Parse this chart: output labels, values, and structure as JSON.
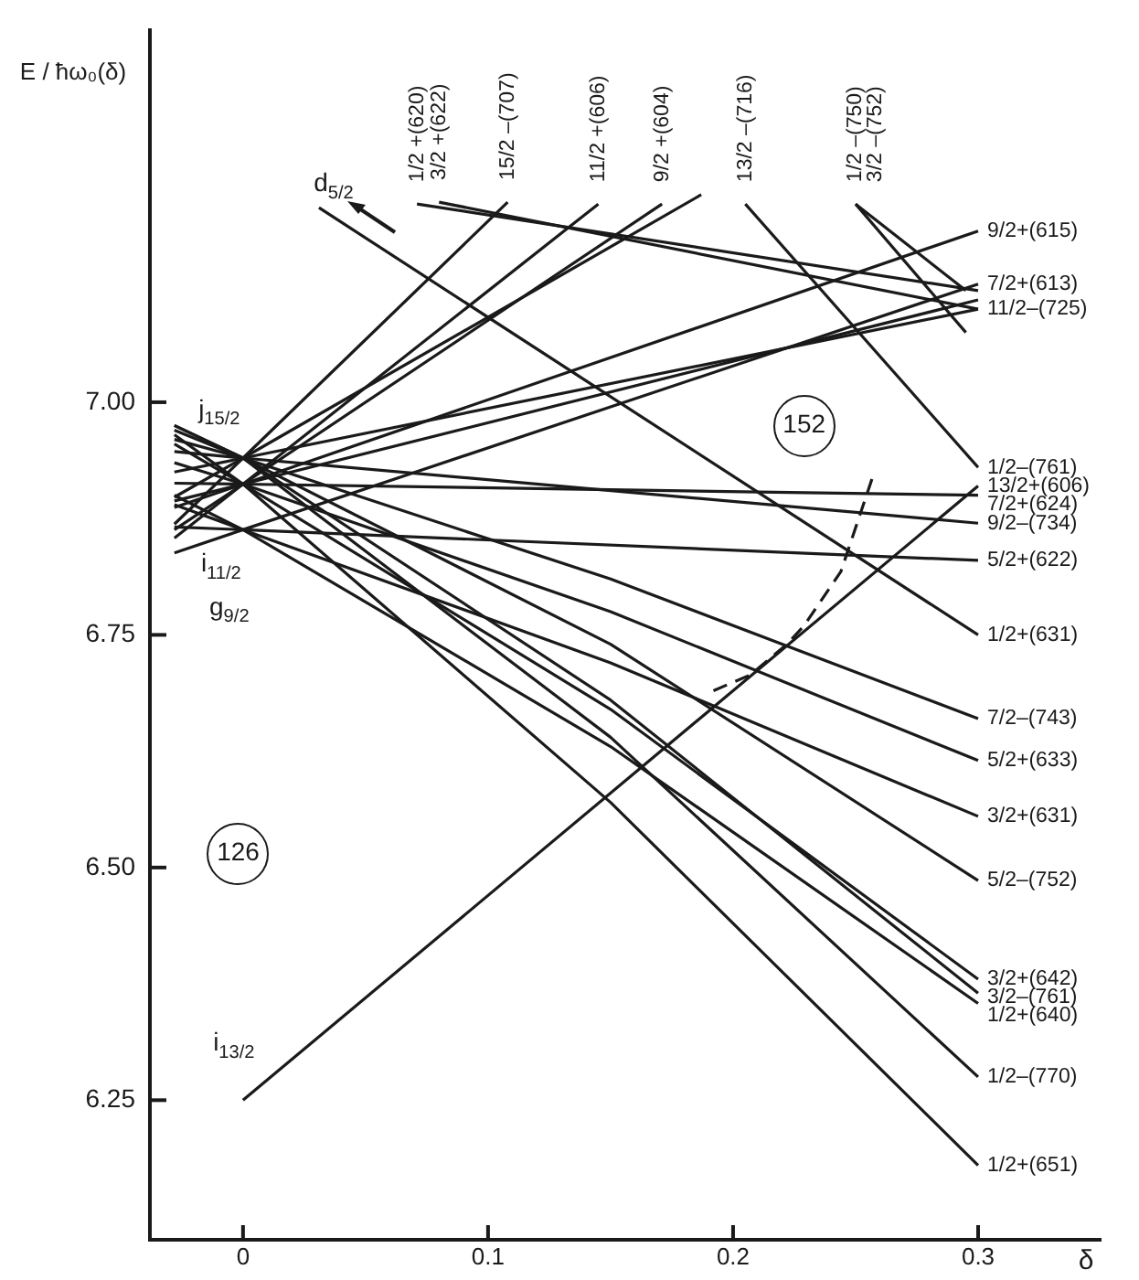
{
  "chart_data": {
    "type": "line",
    "xlabel": "δ",
    "ylabel": "E / ħω₀(δ)",
    "xlim": [
      -0.038,
      0.35
    ],
    "ylim": [
      6.1,
      7.4
    ],
    "xticks": [
      0,
      0.1,
      0.2,
      0.3
    ],
    "yticks": [
      6.25,
      {
        "value": 6.5,
        "label": "6.50"
      },
      6.75,
      {
        "value": 7,
        "label": "7.00"
      }
    ],
    "grid": false,
    "legend": false,
    "marker": "none",
    "series": [
      {
        "color": "#1a1a1a",
        "x": [
          -0.028,
          0,
          0.108
        ],
        "values": [
          6.869,
          6.94,
          7.215
        ]
      },
      {
        "color": "#1a1a1a",
        "x": [
          -0.028,
          0,
          0.187
        ],
        "values": [
          6.898,
          6.94,
          7.223
        ]
      },
      {
        "color": "#1a1a1a",
        "x": [
          -0.028,
          0,
          0.145
        ],
        "values": [
          6.854,
          6.912,
          7.213
        ]
      },
      {
        "color": "#1a1a1a",
        "x": [
          -0.028,
          0,
          0.171
        ],
        "values": [
          6.863,
          6.912,
          7.213
        ]
      },
      {
        "color": "#1a1a1a",
        "x": [
          -0.028,
          0,
          0.3
        ],
        "values": [
          6.887,
          6.912,
          7.184
        ]
      },
      {
        "color": "#1a1a1a",
        "x": [
          -0.028,
          0,
          0.3
        ],
        "values": [
          6.838,
          6.863,
          7.127
        ]
      },
      {
        "color": "#1a1a1a",
        "x": [
          -0.028,
          0,
          0.3
        ],
        "values": [
          6.925,
          6.94,
          7.1
        ]
      },
      {
        "color": "#1a1a1a",
        "x": [
          -0.028,
          0,
          0.3
        ],
        "values": [
          6.894,
          6.912,
          7.11
        ]
      },
      {
        "color": "#1a1a1a",
        "x": [
          -0.028,
          0,
          0.3
        ],
        "values": [
          6.913,
          6.912,
          6.9
        ]
      },
      {
        "color": "#1a1a1a",
        "x": [
          0,
          0.3
        ],
        "values": [
          6.25,
          6.91
        ]
      },
      {
        "color": "#1a1a1a",
        "x": [
          -0.028,
          0,
          0.3
        ],
        "values": [
          6.947,
          6.94,
          6.87
        ]
      },
      {
        "color": "#1a1a1a",
        "x": [
          -0.028,
          0,
          0.3
        ],
        "values": [
          6.866,
          6.863,
          6.83
        ]
      },
      {
        "color": "#1a1a1a",
        "x": [
          -0.028,
          0,
          0.15,
          0.3
        ],
        "values": [
          6.96,
          6.94,
          6.81,
          6.66
        ]
      },
      {
        "color": "#1a1a1a",
        "x": [
          -0.028,
          0,
          0.15,
          0.3
        ],
        "values": [
          6.935,
          6.912,
          6.775,
          6.615
        ]
      },
      {
        "color": "#1a1a1a",
        "x": [
          -0.028,
          0,
          0.15,
          0.3
        ],
        "values": [
          6.89,
          6.863,
          6.72,
          6.555
        ]
      },
      {
        "color": "#1a1a1a",
        "x": [
          -0.028,
          0,
          0.15,
          0.3
        ],
        "values": [
          6.975,
          6.94,
          6.74,
          6.486
        ]
      },
      {
        "color": "#1a1a1a",
        "x": [
          -0.028,
          0,
          0.15,
          0.3
        ],
        "values": [
          6.955,
          6.912,
          6.67,
          6.38
        ]
      },
      {
        "color": "#1a1a1a",
        "x": [
          -0.028,
          0,
          0.15,
          0.3
        ],
        "values": [
          6.97,
          6.94,
          6.68,
          6.365
        ]
      },
      {
        "color": "#1a1a1a",
        "x": [
          -0.028,
          0,
          0.15,
          0.3
        ],
        "values": [
          6.9,
          6.863,
          6.63,
          6.354
        ]
      },
      {
        "color": "#1a1a1a",
        "x": [
          -0.028,
          0,
          0.15,
          0.3
        ],
        "values": [
          6.975,
          6.94,
          6.64,
          6.275
        ]
      },
      {
        "color": "#1a1a1a",
        "x": [
          -0.028,
          0,
          0.15,
          0.3
        ],
        "values": [
          6.965,
          6.912,
          6.57,
          6.18
        ]
      },
      {
        "color": "#1a1a1a",
        "x": [
          0.031,
          0.3
        ],
        "values": [
          7.209,
          6.75
        ]
      },
      {
        "color": "#1a1a1a",
        "x": [
          0.071,
          0.3
        ],
        "values": [
          7.213,
          7.12
        ]
      },
      {
        "color": "#1a1a1a",
        "x": [
          0.08,
          0.3
        ],
        "values": [
          7.215,
          7.1
        ]
      },
      {
        "color": "#1a1a1a",
        "x": [
          0.205,
          0.3
        ],
        "values": [
          7.213,
          6.93
        ]
      },
      {
        "color": "#1a1a1a",
        "x": [
          0.25,
          0.295
        ],
        "values": [
          7.213,
          7.12
        ]
      },
      {
        "color": "#1a1a1a",
        "x": [
          0.25,
          0.295
        ],
        "values": [
          7.213,
          7.075
        ]
      },
      {
        "color": "#1a1a1a",
        "line_style": "dashed",
        "x": [
          0.192,
          0.207,
          0.222,
          0.229,
          0.244,
          0.257
        ],
        "values": [
          6.69,
          6.707,
          6.74,
          6.76,
          6.818,
          6.92
        ]
      }
    ],
    "annotations": [
      {
        "text": "1/2 +(620)",
        "x": 0.071,
        "y": 7.213
      },
      {
        "text": "3/2 +(622)",
        "x": 0.08,
        "y": 7.215
      },
      {
        "text": "15/2 –(707)",
        "x": 0.108,
        "y": 7.215
      },
      {
        "text": "11/2 +(606)",
        "x": 0.145,
        "y": 7.213
      },
      {
        "text": "9/2 +(604)",
        "x": 0.171,
        "y": 7.213
      },
      {
        "text": "13/2 –(716)",
        "x": 0.205,
        "y": 7.213
      },
      {
        "text": "1/2 –(750)",
        "x": 0.25,
        "y": 7.213
      },
      {
        "text": "3/2 –(752)",
        "x": 0.25,
        "y": 7.213
      },
      {
        "text": "9/2+(615)",
        "x": 0.3,
        "y": 7.184
      },
      {
        "text": "7/2+(613)",
        "x": 0.3,
        "y": 7.127
      },
      {
        "text": "11/2–(725)",
        "x": 0.3,
        "y": 7.1
      },
      {
        "text": "1/2–(761)",
        "x": 0.3,
        "y": 6.93
      },
      {
        "text": "13/2+(606)",
        "x": 0.3,
        "y": 6.91
      },
      {
        "text": "7/2+(624)",
        "x": 0.3,
        "y": 6.9
      },
      {
        "text": "9/2–(734)",
        "x": 0.3,
        "y": 6.87
      },
      {
        "text": "5/2+(622)",
        "x": 0.3,
        "y": 6.83
      },
      {
        "text": "1/2+(631)",
        "x": 0.3,
        "y": 6.75
      },
      {
        "text": "7/2–(743)",
        "x": 0.3,
        "y": 6.66
      },
      {
        "text": "5/2+(633)",
        "x": 0.3,
        "y": 6.615
      },
      {
        "text": "3/2+(631)",
        "x": 0.3,
        "y": 6.555
      },
      {
        "text": "5/2–(752)",
        "x": 0.3,
        "y": 6.486
      },
      {
        "text": "3/2+(642)",
        "x": 0.3,
        "y": 6.38
      },
      {
        "text": "3/2–(761)",
        "x": 0.3,
        "y": 6.365
      },
      {
        "text": "1/2+(640)",
        "x": 0.3,
        "y": 6.354
      },
      {
        "text": "1/2–(770)",
        "x": 0.3,
        "y": 6.275
      },
      {
        "text": "1/2+(651)",
        "x": 0.3,
        "y": 6.18
      },
      {
        "text": "d$_{5/2}$",
        "x": 0.031,
        "y": 7.209
      },
      {
        "text": "j$_{15/2}$",
        "x": 0,
        "y": 6.94
      },
      {
        "text": "i$_{11/2}$",
        "x": 0,
        "y": 6.912
      },
      {
        "text": "g$_{9/2}$",
        "x": -0.028,
        "y": 6.838
      },
      {
        "text": "i$_{13/2}$",
        "x": 0,
        "y": 6.25
      },
      {
        "text": "126",
        "x": -0.002,
        "y": 6.515
      },
      {
        "text": "152",
        "x": 0.229,
        "y": 6.975
      }
    ]
  }
}
